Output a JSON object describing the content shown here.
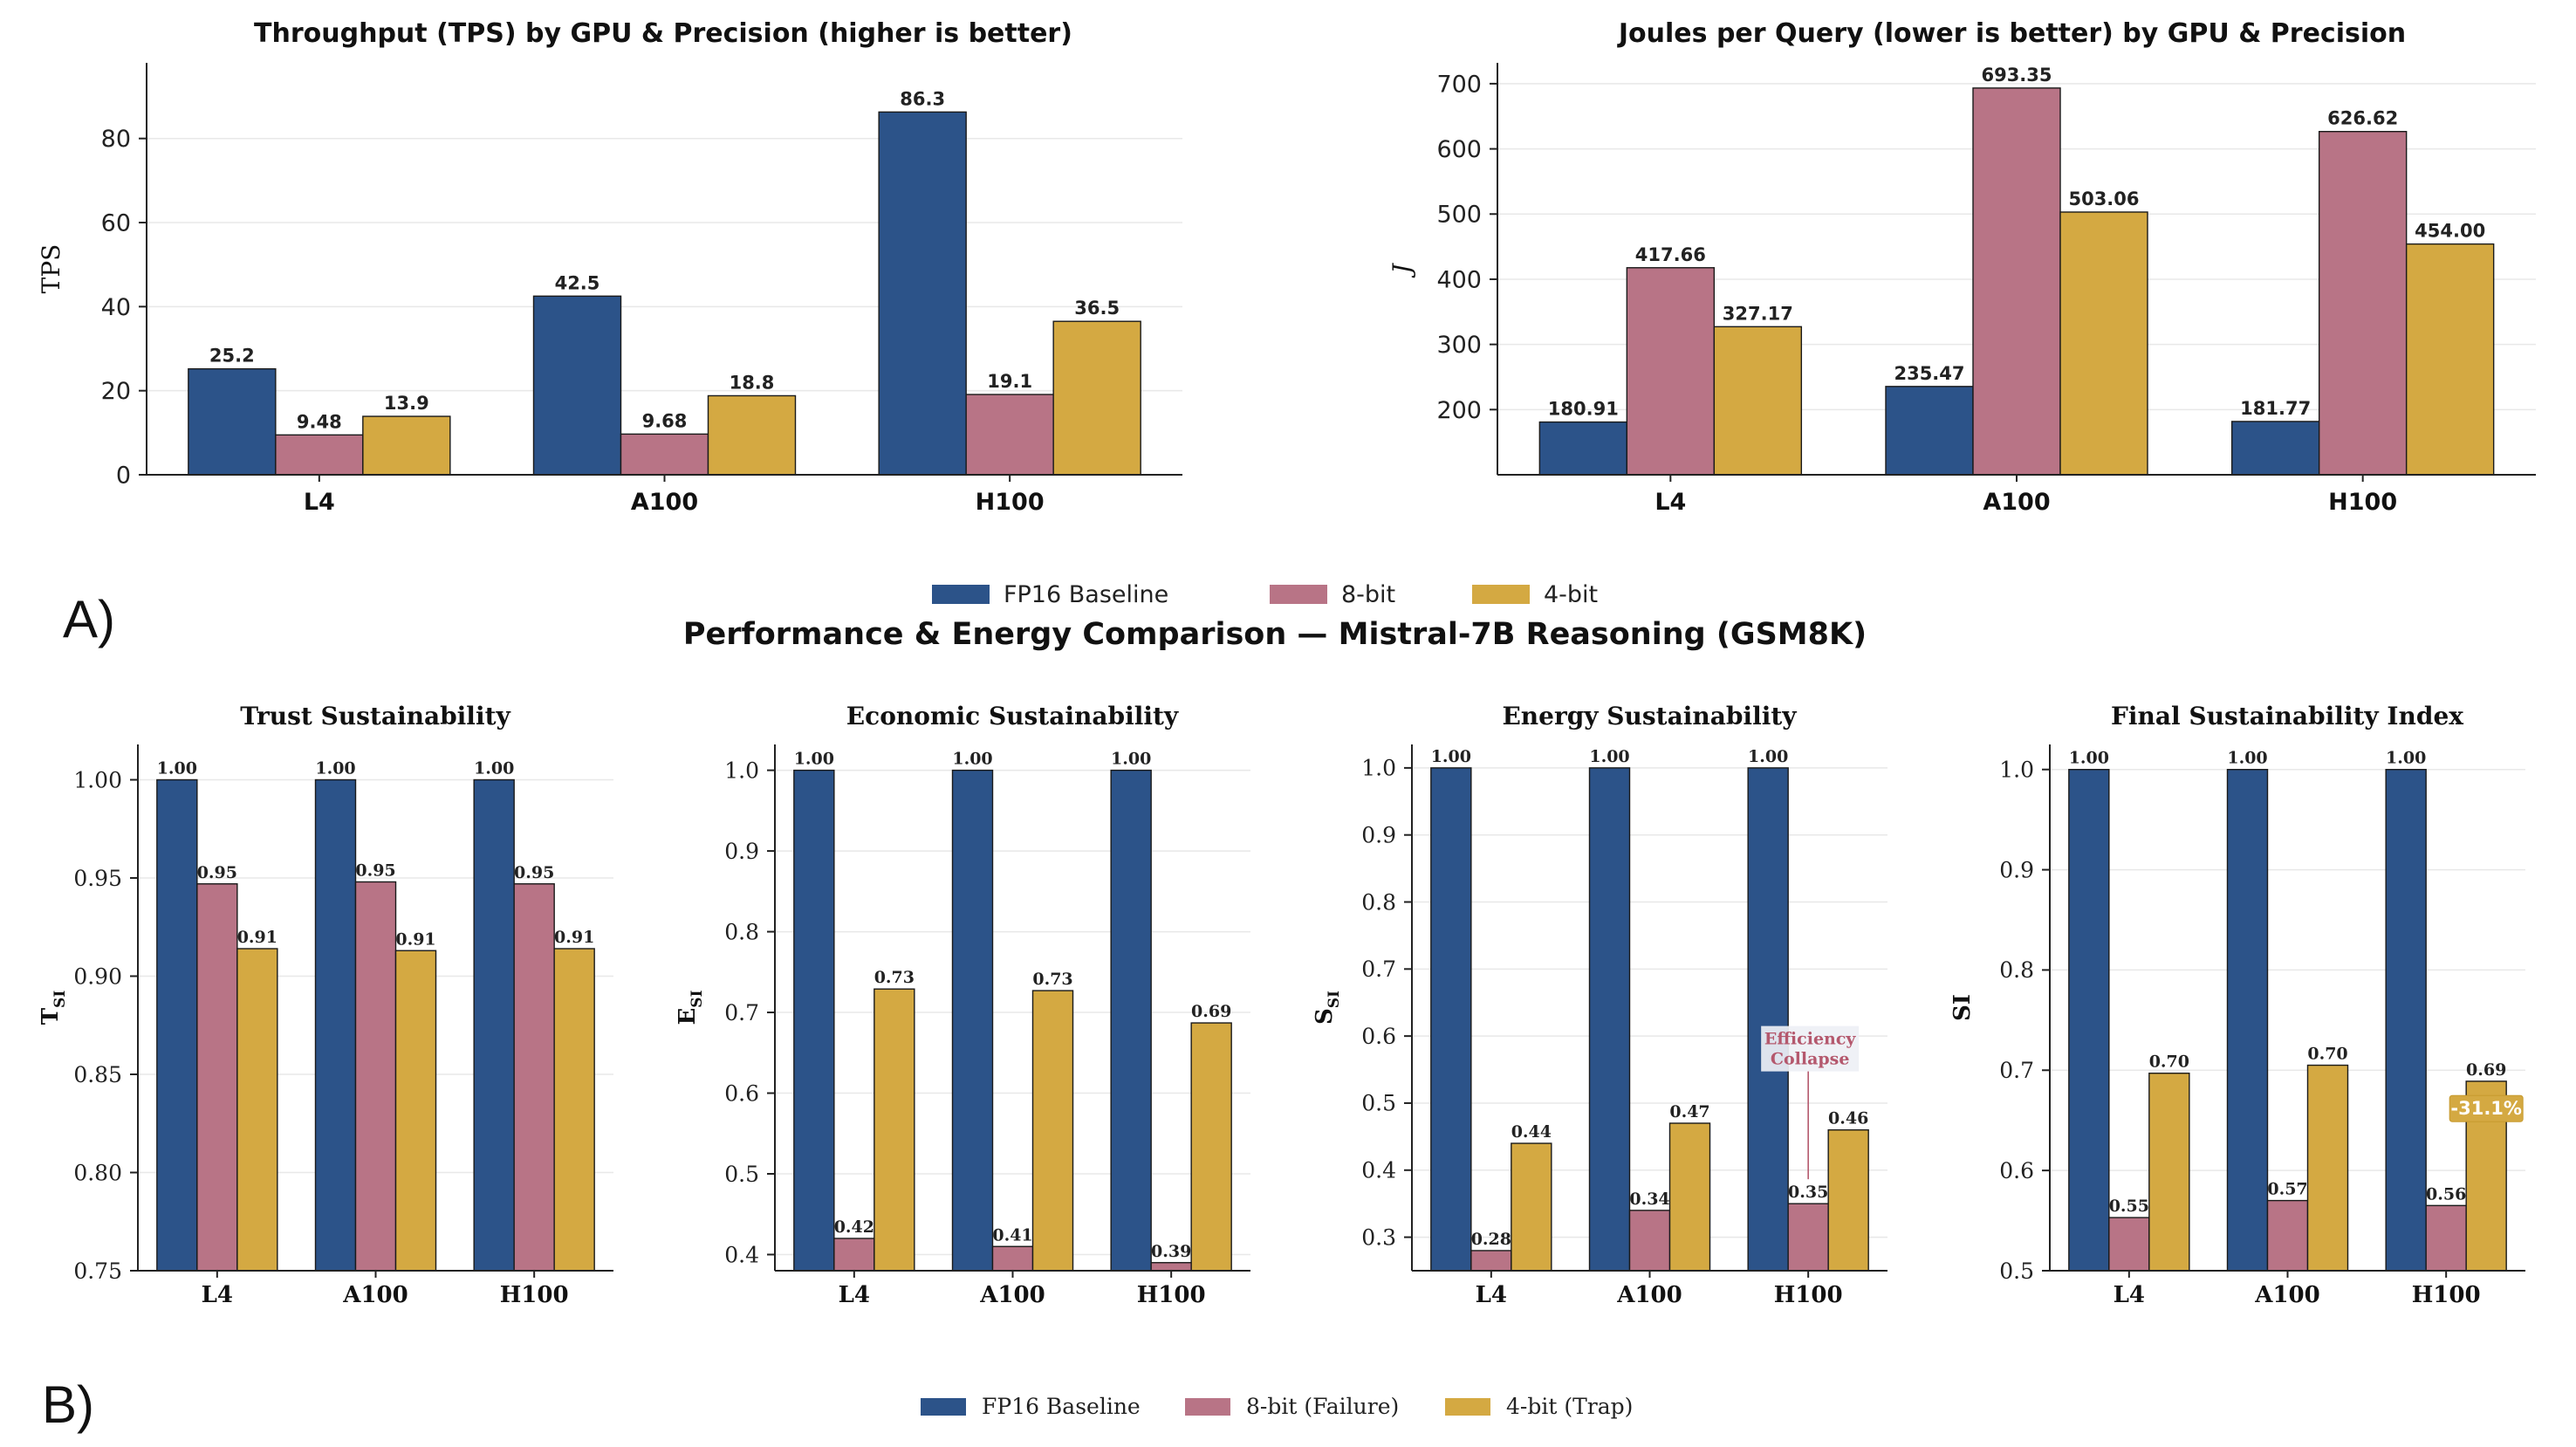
{
  "colors": {
    "fp16": "#2c5389",
    "bit8": "#b87486",
    "bit4": "#d4a942",
    "annotation": "#b4586d",
    "axis": "#222222",
    "grid": "#e8e8e8"
  },
  "panel_a": {
    "label": "A)",
    "suptitle": "Performance & Energy Comparison — Mistral-7B Reasoning (GSM8K)",
    "legend": [
      "FP16 Baseline",
      "8-bit",
      "4-bit"
    ]
  },
  "panel_b": {
    "label": "B)",
    "legend": [
      "FP16 Baseline",
      "8-bit (Failure)",
      "4-bit (Trap)"
    ]
  },
  "chart_data": [
    {
      "id": "tps",
      "type": "bar",
      "title": "Throughput (TPS) by GPU & Precision (higher is better)",
      "xlabel": "",
      "ylabel": "TPS",
      "ylim": [
        0,
        98
      ],
      "yticks": [
        0,
        20,
        40,
        60,
        80
      ],
      "ytick_labels": [
        "0",
        "20",
        "40",
        "60",
        "80"
      ],
      "categories": [
        "L4",
        "A100",
        "H100"
      ],
      "series": [
        {
          "name": "FP16 Baseline",
          "values": [
            25.2,
            42.5,
            86.3
          ],
          "labels": [
            "25.2",
            "42.5",
            "86.3"
          ]
        },
        {
          "name": "8-bit",
          "values": [
            9.48,
            9.68,
            19.1
          ],
          "labels": [
            "9.48",
            "9.68",
            "19.1"
          ]
        },
        {
          "name": "4-bit",
          "values": [
            13.9,
            18.8,
            36.5
          ],
          "labels": [
            "13.9",
            "18.8",
            "36.5"
          ]
        }
      ]
    },
    {
      "id": "joules",
      "type": "bar",
      "title": "Joules per Query (lower is better) by GPU & Precision",
      "xlabel": "",
      "ylabel": "J",
      "ylim": [
        100,
        732
      ],
      "yticks": [
        200,
        300,
        400,
        500,
        600,
        700
      ],
      "ytick_labels": [
        "200",
        "300",
        "400",
        "500",
        "600",
        "700"
      ],
      "categories": [
        "L4",
        "A100",
        "H100"
      ],
      "series": [
        {
          "name": "FP16 Baseline",
          "values": [
            180.91,
            235.47,
            181.77
          ],
          "labels": [
            "180.91",
            "235.47",
            "181.77"
          ]
        },
        {
          "name": "8-bit",
          "values": [
            417.66,
            693.35,
            626.62
          ],
          "labels": [
            "417.66",
            "693.35",
            "626.62"
          ]
        },
        {
          "name": "4-bit",
          "values": [
            327.17,
            503.06,
            454.0
          ],
          "labels": [
            "327.17",
            "503.06",
            "454.00"
          ]
        }
      ]
    },
    {
      "id": "trust",
      "type": "bar",
      "title": "Trust Sustainability",
      "xlabel": "",
      "ylabel": "T",
      "ylabel_sub": "SI",
      "ylim": [
        0.75,
        1.018
      ],
      "yticks": [
        0.75,
        0.8,
        0.85,
        0.9,
        0.95,
        1.0
      ],
      "ytick_labels": [
        "0.75",
        "0.80",
        "0.85",
        "0.90",
        "0.95",
        "1.00"
      ],
      "categories": [
        "L4",
        "A100",
        "H100"
      ],
      "series": [
        {
          "name": "FP16 Baseline",
          "values": [
            1.0,
            1.0,
            1.0
          ],
          "labels": [
            "1.00",
            "1.00",
            "1.00"
          ]
        },
        {
          "name": "8-bit (Failure)",
          "values": [
            0.947,
            0.948,
            0.947
          ],
          "labels": [
            "0.95",
            "0.95",
            "0.95"
          ]
        },
        {
          "name": "4-bit (Trap)",
          "values": [
            0.914,
            0.913,
            0.914
          ],
          "labels": [
            "0.91",
            "0.91",
            "0.91"
          ]
        }
      ]
    },
    {
      "id": "economic",
      "type": "bar",
      "title": "Economic Sustainability",
      "xlabel": "",
      "ylabel": "E",
      "ylabel_sub": "SI",
      "ylim": [
        0.38,
        1.032
      ],
      "yticks": [
        0.4,
        0.5,
        0.6,
        0.7,
        0.8,
        0.9,
        1.0
      ],
      "ytick_labels": [
        "0.4",
        "0.5",
        "0.6",
        "0.7",
        "0.8",
        "0.9",
        "1.0"
      ],
      "categories": [
        "L4",
        "A100",
        "H100"
      ],
      "series": [
        {
          "name": "FP16 Baseline",
          "values": [
            1.0,
            1.0,
            1.0
          ],
          "labels": [
            "1.00",
            "1.00",
            "1.00"
          ]
        },
        {
          "name": "8-bit (Failure)",
          "values": [
            0.42,
            0.41,
            0.39
          ],
          "labels": [
            "0.42",
            "0.41",
            "0.39"
          ]
        },
        {
          "name": "4-bit (Trap)",
          "values": [
            0.729,
            0.727,
            0.687
          ],
          "labels": [
            "0.73",
            "0.73",
            "0.69"
          ]
        }
      ]
    },
    {
      "id": "energy",
      "type": "bar",
      "title": "Energy Sustainability",
      "xlabel": "",
      "ylabel": "S",
      "ylabel_sub": "SI",
      "ylim": [
        0.25,
        1.035
      ],
      "yticks": [
        0.3,
        0.4,
        0.5,
        0.6,
        0.7,
        0.8,
        0.9,
        1.0
      ],
      "ytick_labels": [
        "0.3",
        "0.4",
        "0.5",
        "0.6",
        "0.7",
        "0.8",
        "0.9",
        "1.0"
      ],
      "categories": [
        "L4",
        "A100",
        "H100"
      ],
      "series": [
        {
          "name": "FP16 Baseline",
          "values": [
            1.0,
            1.0,
            1.0
          ],
          "labels": [
            "1.00",
            "1.00",
            "1.00"
          ]
        },
        {
          "name": "8-bit (Failure)",
          "values": [
            0.28,
            0.34,
            0.35
          ],
          "labels": [
            "0.28",
            "0.34",
            "0.35"
          ]
        },
        {
          "name": "4-bit (Trap)",
          "values": [
            0.44,
            0.47,
            0.46
          ],
          "labels": [
            "0.44",
            "0.47",
            "0.46"
          ]
        }
      ],
      "annotation": {
        "text_line1": "Efficiency",
        "text_line2": "Collapse",
        "target_category": "H100",
        "target_series": 1
      }
    },
    {
      "id": "final",
      "type": "bar",
      "title": "Final Sustainability Index",
      "xlabel": "",
      "ylabel": "SI",
      "ylim": [
        0.5,
        1.025
      ],
      "yticks": [
        0.5,
        0.6,
        0.7,
        0.8,
        0.9,
        1.0
      ],
      "ytick_labels": [
        "0.5",
        "0.6",
        "0.7",
        "0.8",
        "0.9",
        "1.0"
      ],
      "categories": [
        "L4",
        "A100",
        "H100"
      ],
      "series": [
        {
          "name": "FP16 Baseline",
          "values": [
            1.0,
            1.0,
            1.0
          ],
          "labels": [
            "1.00",
            "1.00",
            "1.00"
          ]
        },
        {
          "name": "8-bit (Failure)",
          "values": [
            0.553,
            0.57,
            0.565
          ],
          "labels": [
            "0.55",
            "0.57",
            "0.56"
          ]
        },
        {
          "name": "4-bit (Trap)",
          "values": [
            0.697,
            0.705,
            0.689
          ],
          "labels": [
            "0.70",
            "0.70",
            "0.69"
          ]
        }
      ],
      "badge": {
        "text": "-31.1%",
        "target_category": "H100",
        "target_series": 2
      }
    }
  ]
}
